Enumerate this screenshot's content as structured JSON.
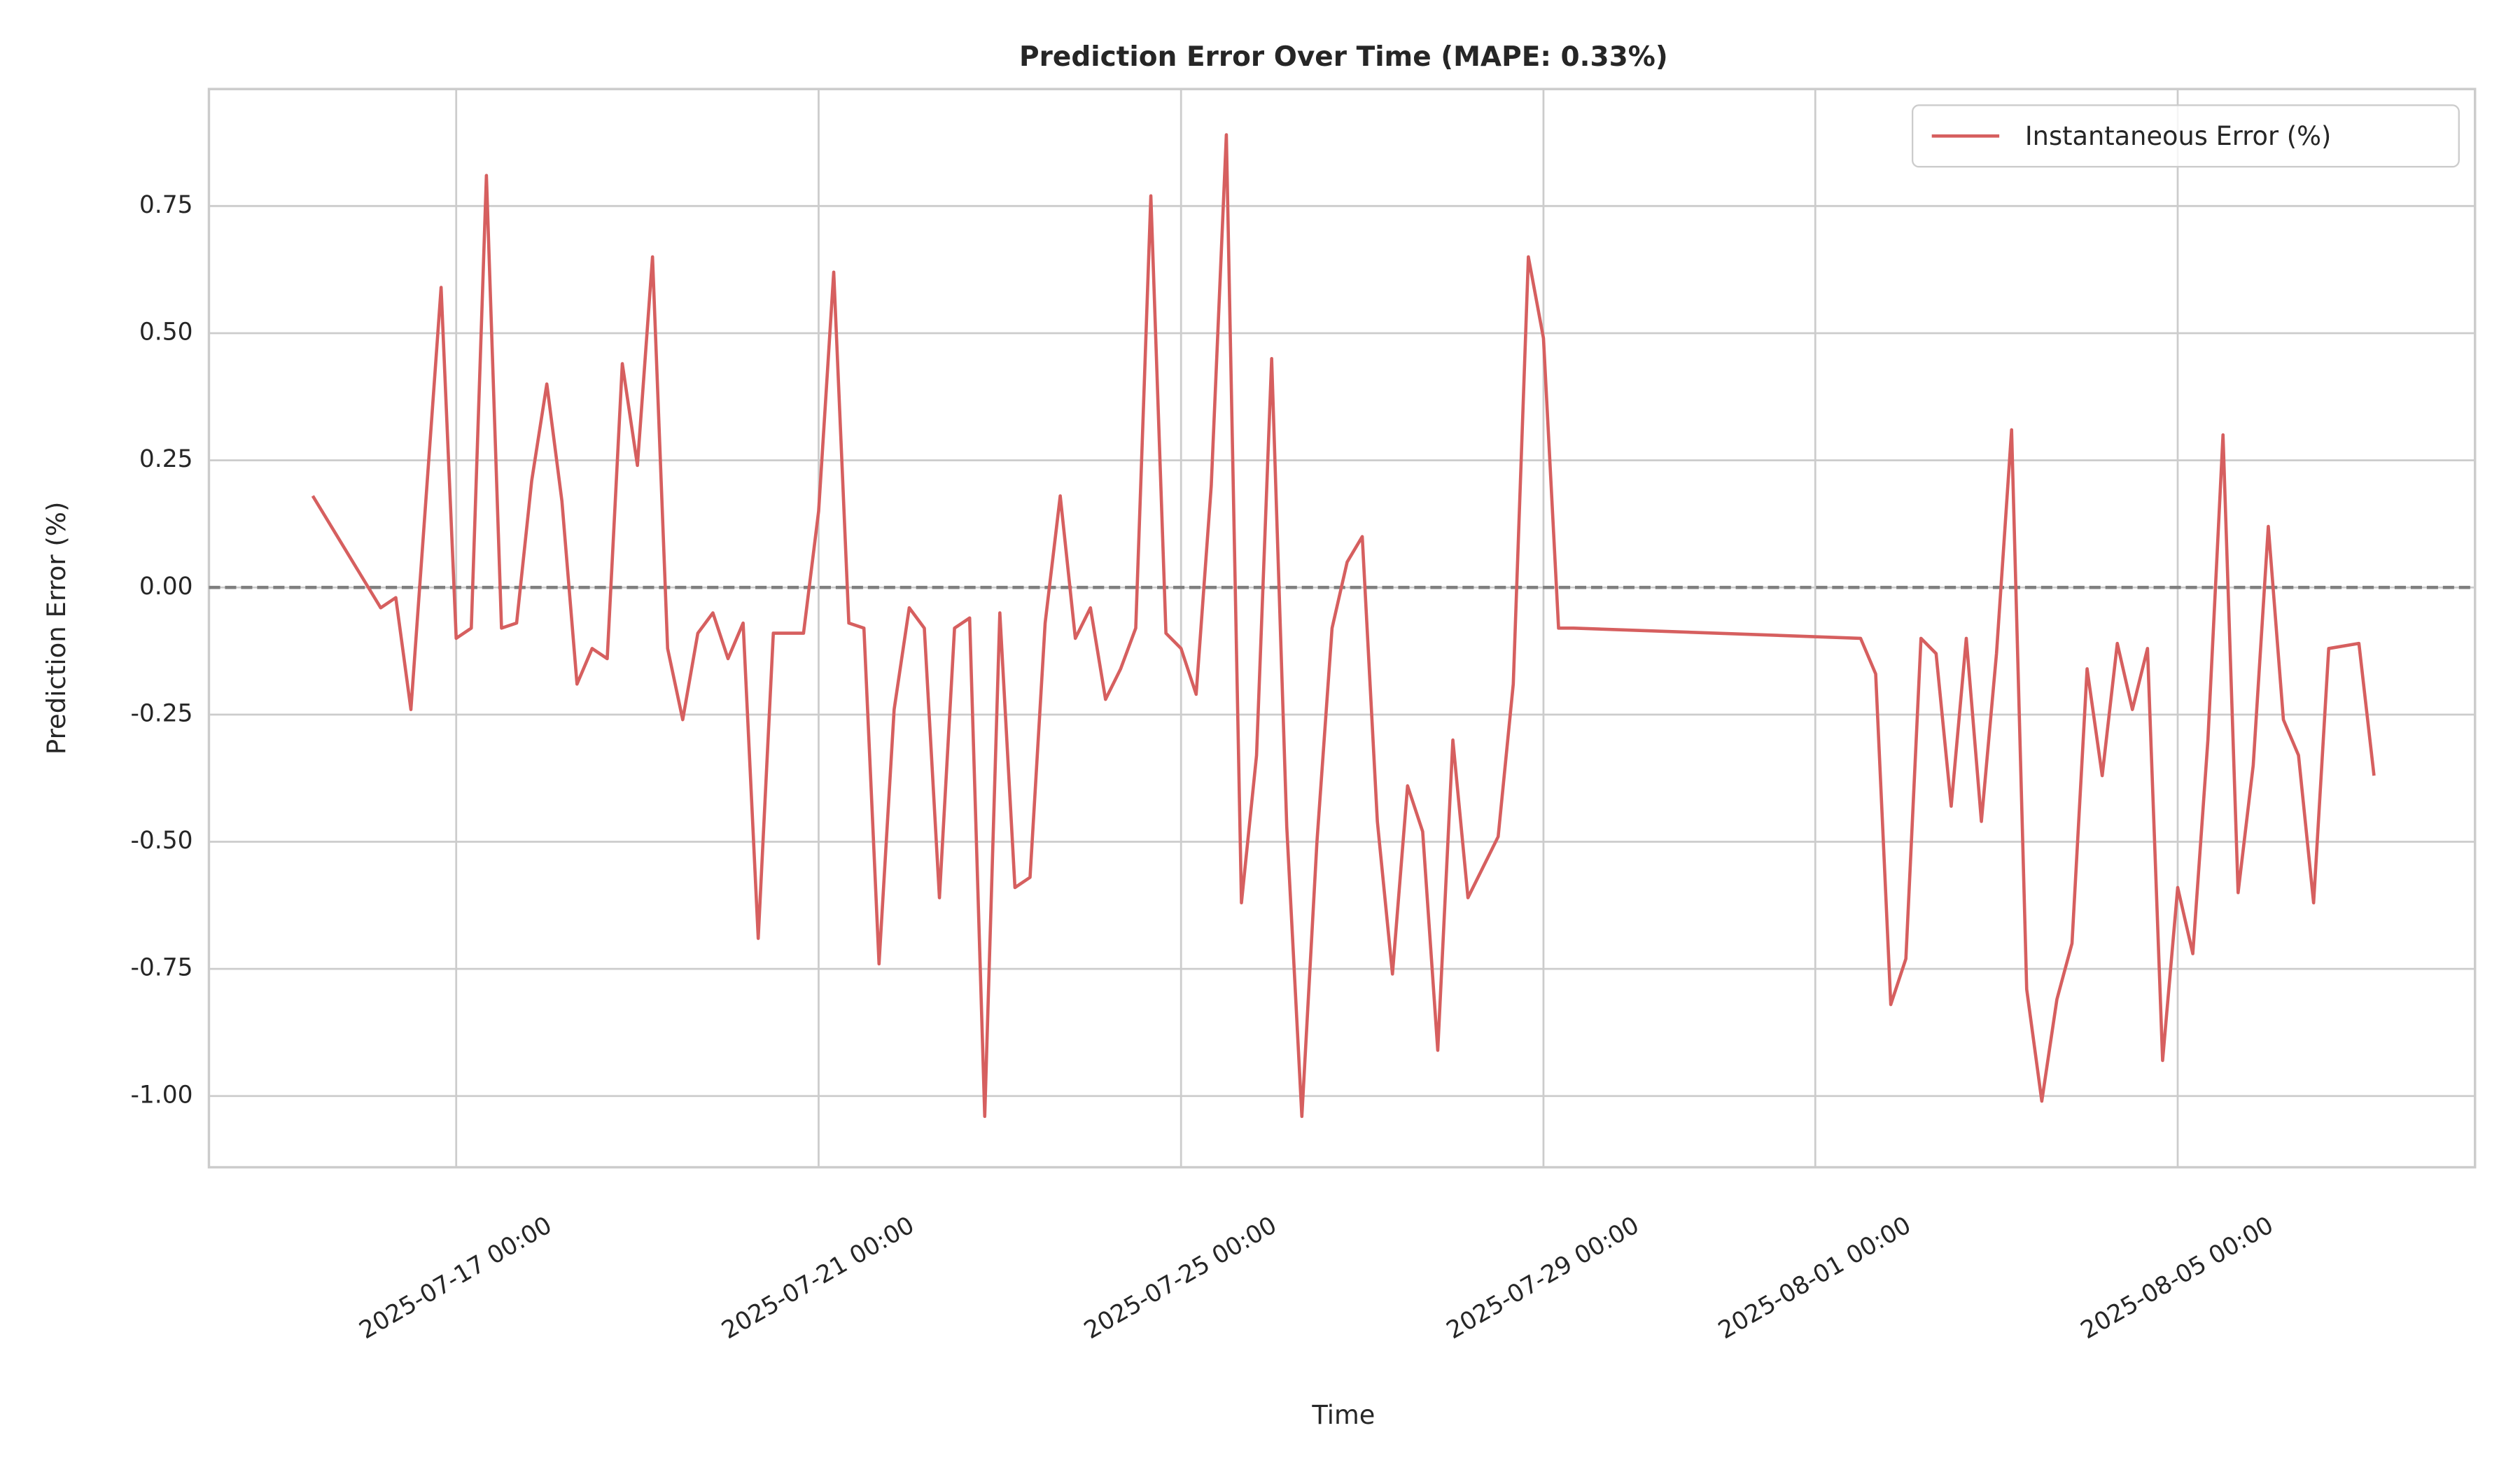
{
  "chart_data": {
    "type": "line",
    "title": "Prediction Error Over Time (MAPE: 0.33%)",
    "xlabel": "Time",
    "ylabel": "Prediction Error (%)",
    "x": [
      "2025-07-15 10:00",
      "2025-07-16 04:00",
      "2025-07-16 08:00",
      "2025-07-16 12:00",
      "2025-07-16 20:00",
      "2025-07-17 00:00",
      "2025-07-17 04:00",
      "2025-07-17 08:00",
      "2025-07-17 12:00",
      "2025-07-17 16:00",
      "2025-07-17 20:00",
      "2025-07-18 00:00",
      "2025-07-18 04:00",
      "2025-07-18 08:00",
      "2025-07-18 12:00",
      "2025-07-18 16:00",
      "2025-07-18 20:00",
      "2025-07-19 00:00",
      "2025-07-19 04:00",
      "2025-07-19 08:00",
      "2025-07-19 12:00",
      "2025-07-19 16:00",
      "2025-07-19 20:00",
      "2025-07-20 00:00",
      "2025-07-20 04:00",
      "2025-07-20 08:00",
      "2025-07-20 12:00",
      "2025-07-20 16:00",
      "2025-07-20 20:00",
      "2025-07-21 00:00",
      "2025-07-21 04:00",
      "2025-07-21 08:00",
      "2025-07-21 12:00",
      "2025-07-21 16:00",
      "2025-07-21 20:00",
      "2025-07-22 00:00",
      "2025-07-22 04:00",
      "2025-07-22 08:00",
      "2025-07-22 12:00",
      "2025-07-22 16:00",
      "2025-07-22 20:00",
      "2025-07-23 00:00",
      "2025-07-23 04:00",
      "2025-07-23 08:00",
      "2025-07-23 12:00",
      "2025-07-23 16:00",
      "2025-07-23 20:00",
      "2025-07-24 00:00",
      "2025-07-24 04:00",
      "2025-07-24 08:00",
      "2025-07-24 12:00",
      "2025-07-24 16:00",
      "2025-07-24 20:00",
      "2025-07-25 00:00",
      "2025-07-25 04:00",
      "2025-07-25 08:00",
      "2025-07-25 12:00",
      "2025-07-25 16:00",
      "2025-07-25 20:00",
      "2025-07-26 00:00",
      "2025-07-26 04:00",
      "2025-07-26 08:00",
      "2025-07-26 12:00",
      "2025-07-26 16:00",
      "2025-07-26 20:00",
      "2025-07-27 00:00",
      "2025-07-27 04:00",
      "2025-07-27 08:00",
      "2025-07-27 12:00",
      "2025-07-27 16:00",
      "2025-07-27 20:00",
      "2025-07-28 00:00",
      "2025-07-28 04:00",
      "2025-07-28 08:00",
      "2025-07-28 12:00",
      "2025-07-28 16:00",
      "2025-07-28 20:00",
      "2025-07-29 00:00",
      "2025-07-29 04:00",
      "2025-07-29 08:00",
      "2025-08-01 12:00",
      "2025-08-01 16:00",
      "2025-08-01 20:00",
      "2025-08-02 00:00",
      "2025-08-02 04:00",
      "2025-08-02 08:00",
      "2025-08-02 12:00",
      "2025-08-02 16:00",
      "2025-08-02 20:00",
      "2025-08-03 00:00",
      "2025-08-03 04:00",
      "2025-08-03 08:00",
      "2025-08-03 12:00",
      "2025-08-03 16:00",
      "2025-08-03 20:00",
      "2025-08-04 00:00",
      "2025-08-04 04:00",
      "2025-08-04 08:00",
      "2025-08-04 12:00",
      "2025-08-04 16:00",
      "2025-08-04 20:00",
      "2025-08-05 00:00",
      "2025-08-05 04:00",
      "2025-08-05 08:00",
      "2025-08-05 12:00",
      "2025-08-05 16:00",
      "2025-08-05 20:00",
      "2025-08-06 00:00",
      "2025-08-06 04:00",
      "2025-08-06 08:00",
      "2025-08-06 12:00",
      "2025-08-06 16:00",
      "2025-08-07 00:00",
      "2025-08-07 04:00"
    ],
    "series": [
      {
        "name": "Instantaneous Error (%)",
        "color": "#d65f5f",
        "values": [
          0.18,
          -0.04,
          -0.02,
          -0.24,
          0.59,
          -0.1,
          -0.08,
          0.81,
          -0.08,
          -0.07,
          0.21,
          0.4,
          0.17,
          -0.19,
          -0.12,
          -0.14,
          0.44,
          0.24,
          0.65,
          -0.12,
          -0.26,
          -0.09,
          -0.05,
          -0.14,
          -0.07,
          -0.69,
          -0.09,
          -0.09,
          -0.09,
          0.15,
          0.62,
          -0.07,
          -0.08,
          -0.74,
          -0.24,
          -0.04,
          -0.08,
          -0.61,
          -0.08,
          -0.06,
          -1.04,
          -0.05,
          -0.59,
          -0.57,
          -0.07,
          0.18,
          -0.1,
          -0.04,
          -0.22,
          -0.16,
          -0.08,
          0.77,
          -0.09,
          -0.12,
          -0.21,
          0.2,
          0.89,
          -0.62,
          -0.33,
          0.45,
          -0.47,
          -1.04,
          -0.5,
          -0.08,
          0.05,
          0.1,
          -0.46,
          -0.76,
          -0.39,
          -0.48,
          -0.91,
          -0.3,
          -0.61,
          -0.55,
          -0.49,
          -0.19,
          0.65,
          0.49,
          -0.08,
          -0.08,
          -0.1,
          -0.17,
          -0.82,
          -0.73,
          -0.1,
          -0.13,
          -0.43,
          -0.1,
          -0.46,
          -0.13,
          0.31,
          -0.79,
          -1.01,
          -0.81,
          -0.7,
          -0.16,
          -0.37,
          -0.11,
          -0.24,
          -0.12,
          -0.93,
          -0.59,
          -0.72,
          -0.3,
          0.3,
          -0.6,
          -0.35,
          0.12,
          -0.26,
          -0.33,
          -0.62,
          -0.12,
          -0.11,
          -0.37
        ]
      }
    ],
    "hline": 0,
    "xlim": [
      "2025-07-14 06:30",
      "2025-08-08 06:45"
    ],
    "xticks": [
      "2025-07-17 00:00",
      "2025-07-21 00:00",
      "2025-07-25 00:00",
      "2025-07-29 00:00",
      "2025-08-01 00:00",
      "2025-08-05 00:00"
    ],
    "ylim": [
      -1.14,
      0.98
    ],
    "yticks": [
      {
        "value": -1,
        "label": "-1.00"
      },
      -0.75,
      {
        "value": -0.5,
        "label": "-0.50"
      },
      -0.25,
      {
        "value": 0,
        "label": "0.00"
      },
      0.25,
      {
        "value": 0.5,
        "label": "0.50"
      },
      0.75
    ],
    "grid": true,
    "legend": "upper right"
  }
}
